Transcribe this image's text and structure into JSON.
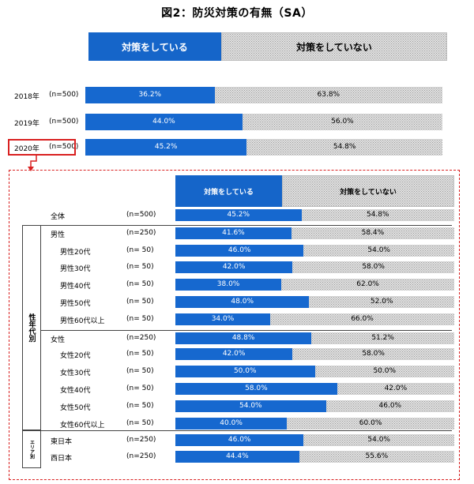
{
  "title": "図2：防災対策の有無（SA）",
  "legend": {
    "yes": "対策をしている",
    "no": "対策をしていない"
  },
  "inner_legend": {
    "yes": "対策をしている",
    "no": "対策をしていない"
  },
  "groups": {
    "demographic": "性年代別",
    "area": "エリア別"
  },
  "colors": {
    "blue": "#1668cf",
    "hatch": "#f2f2f2",
    "highlight": "#d92020"
  },
  "chart_data": [
    {
      "type": "bar",
      "stacked": true,
      "orientation": "horizontal",
      "title": "図2：防災対策の有無（SA）",
      "categories": [
        "2018年",
        "2019年",
        "2020年"
      ],
      "n_labels": [
        "(n=500)",
        "(n=500)",
        "(n=500)"
      ],
      "series": [
        {
          "name": "対策をしている",
          "values": [
            36.2,
            44.0,
            45.2
          ],
          "labels": [
            "36.2%",
            "44.0%",
            "45.2%"
          ]
        },
        {
          "name": "対策をしていない",
          "values": [
            63.8,
            56.0,
            54.8
          ],
          "labels": [
            "63.8%",
            "56.0%",
            "54.8%"
          ]
        }
      ],
      "xlim": [
        0,
        100
      ]
    },
    {
      "type": "bar",
      "stacked": true,
      "orientation": "horizontal",
      "categories": [
        "全体",
        "男性",
        "男性20代",
        "男性30代",
        "男性40代",
        "男性50代",
        "男性60代以上",
        "女性",
        "女性20代",
        "女性30代",
        "女性40代",
        "女性50代",
        "女性60代以上",
        "東日本",
        "西日本"
      ],
      "n_labels": [
        "(n=500)",
        "(n=250)",
        "(n=  50)",
        "(n=  50)",
        "(n=  50)",
        "(n=  50)",
        "(n=  50)",
        "(n=250)",
        "(n=  50)",
        "(n=  50)",
        "(n=  50)",
        "(n=  50)",
        "(n=  50)",
        "(n=250)",
        "(n=250)"
      ],
      "indent": [
        false,
        false,
        true,
        true,
        true,
        true,
        true,
        false,
        true,
        true,
        true,
        true,
        true,
        false,
        false
      ],
      "series": [
        {
          "name": "対策をしている",
          "values": [
            45.2,
            41.6,
            46.0,
            42.0,
            38.0,
            48.0,
            34.0,
            48.8,
            42.0,
            50.0,
            58.0,
            54.0,
            40.0,
            46.0,
            44.4
          ],
          "labels": [
            "45.2%",
            "41.6%",
            "46.0%",
            "42.0%",
            "38.0%",
            "48.0%",
            "34.0%",
            "48.8%",
            "42.0%",
            "50.0%",
            "58.0%",
            "54.0%",
            "40.0%",
            "46.0%",
            "44.4%"
          ]
        },
        {
          "name": "対策をしていない",
          "values": [
            54.8,
            58.4,
            54.0,
            58.0,
            62.0,
            52.0,
            66.0,
            51.2,
            58.0,
            50.0,
            42.0,
            46.0,
            60.0,
            54.0,
            55.6
          ],
          "labels": [
            "54.8%",
            "58.4%",
            "54.0%",
            "58.0%",
            "62.0%",
            "52.0%",
            "66.0%",
            "51.2%",
            "58.0%",
            "50.0%",
            "42.0%",
            "46.0%",
            "60.0%",
            "54.0%",
            "55.6%"
          ]
        }
      ],
      "xlim": [
        0,
        100
      ]
    }
  ]
}
